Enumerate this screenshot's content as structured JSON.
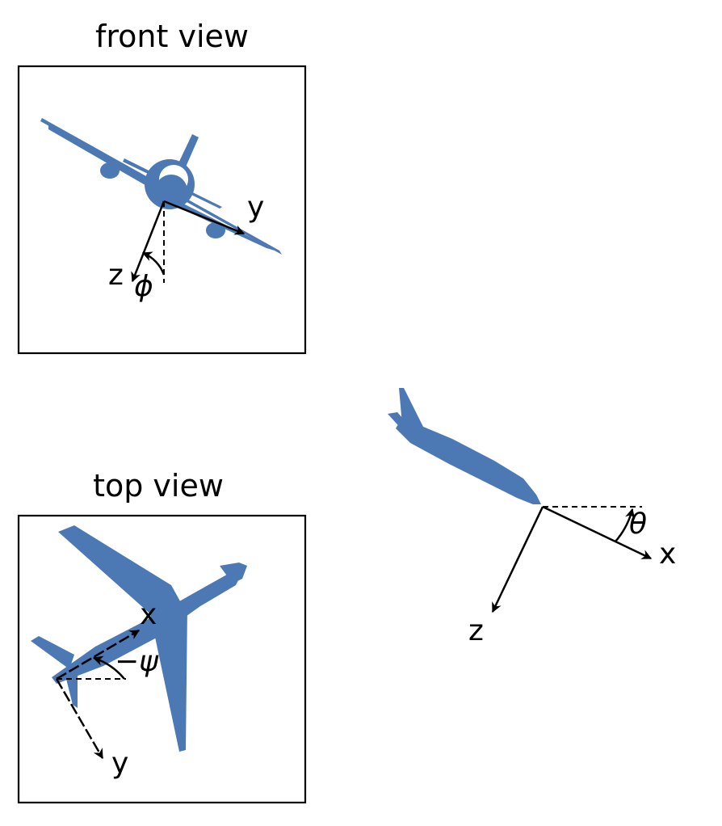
{
  "colors": {
    "plane": "#4c78b4",
    "lines": "#000000"
  },
  "front_view": {
    "title": "front view",
    "axes": {
      "y": "y",
      "z": "z"
    },
    "angle": "ϕ"
  },
  "top_view": {
    "title": "top view",
    "axes": {
      "x": "x",
      "y": "y"
    },
    "angle": "−ψ"
  },
  "side_view": {
    "axes": {
      "x": "x",
      "z": "z"
    },
    "angle": "θ"
  }
}
